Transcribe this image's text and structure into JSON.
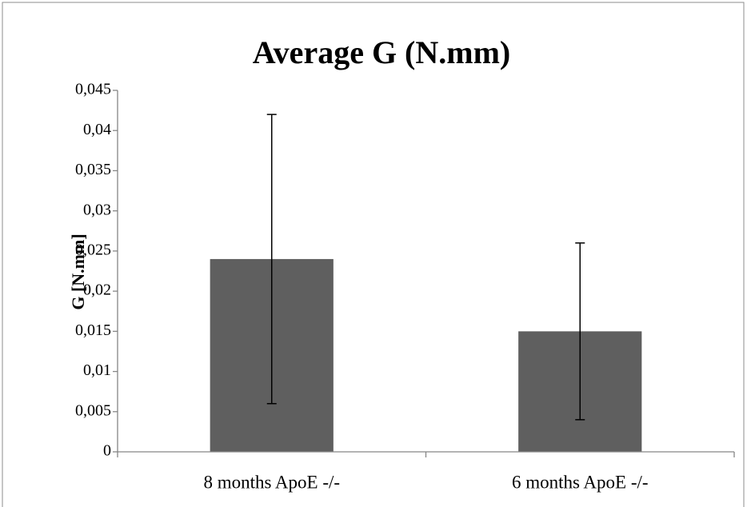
{
  "chart_data": {
    "type": "bar",
    "title": "Average G (N.mm)",
    "y_label": "G [N.mm]",
    "categories": [
      "8 months ApoE -/-",
      "6 months ApoE -/-"
    ],
    "values": [
      0.024,
      0.015
    ],
    "errors": [
      0.018,
      0.011
    ],
    "color": "#5f5f5f",
    "ylim": [
      0,
      0.045
    ],
    "yticks": [
      0,
      {
        "value": 0.005,
        "label": "0,005"
      },
      {
        "value": 0.01,
        "label": "0,01"
      },
      {
        "value": 0.015,
        "label": "0,015"
      },
      {
        "value": 0.02,
        "label": "0,02"
      },
      {
        "value": 0.025,
        "label": "0,025"
      },
      {
        "value": 0.03,
        "label": "0,03"
      },
      {
        "value": 0.035,
        "label": "0,035"
      },
      {
        "value": 0.04,
        "label": "0,04"
      },
      {
        "value": 0.045,
        "label": "0,045"
      }
    ],
    "grid": false
  }
}
